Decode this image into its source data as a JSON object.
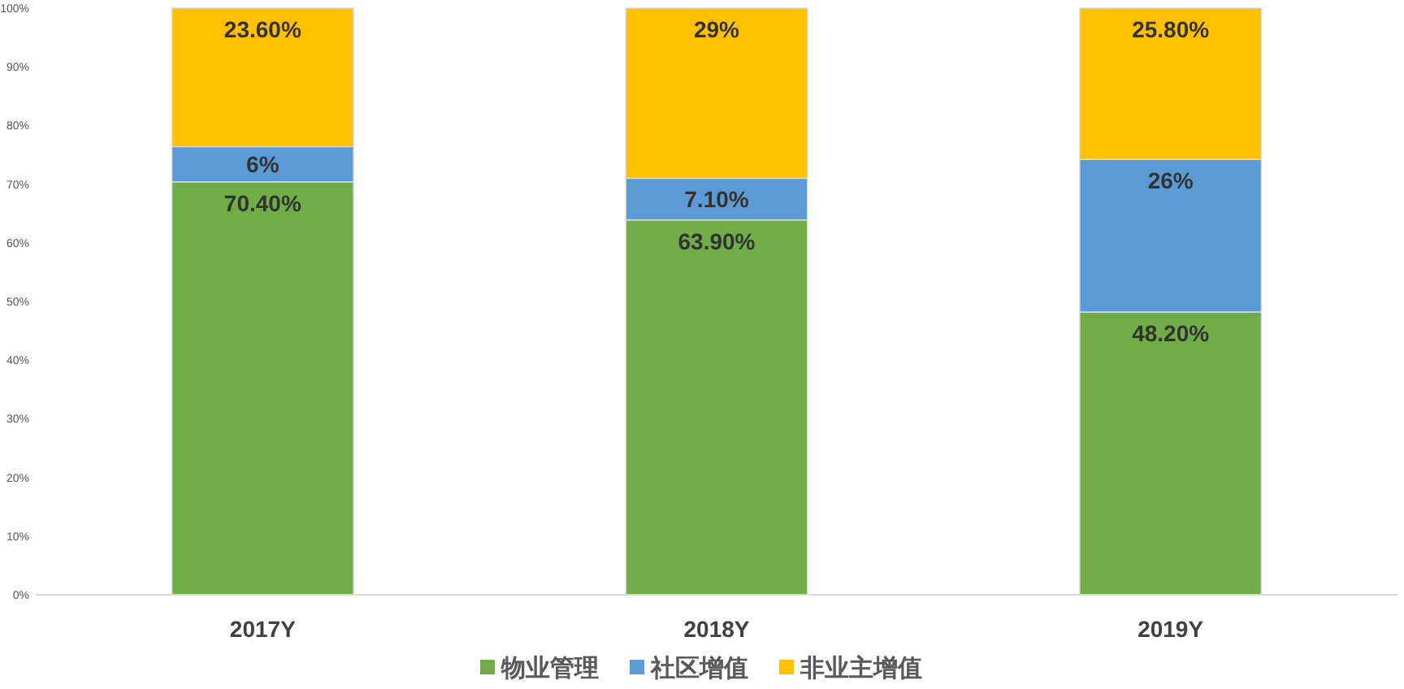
{
  "chart_data": {
    "type": "bar",
    "stacked": true,
    "categories": [
      "2017Y",
      "2018Y",
      "2019Y"
    ],
    "series": [
      {
        "name": "物业管理",
        "color": "#70ad47",
        "values": [
          70.4,
          63.9,
          48.2
        ],
        "value_labels": [
          "70.40%",
          "63.90%",
          "48.20%"
        ]
      },
      {
        "name": "社区增值",
        "color": "#5b9bd5",
        "values": [
          6,
          7.1,
          26
        ],
        "value_labels": [
          "6%",
          "7.10%",
          "26%"
        ]
      },
      {
        "name": "非业主增值",
        "color": "#ffc000",
        "values": [
          23.6,
          29,
          25.8
        ],
        "value_labels": [
          "23.60%",
          "29%",
          "25.80%"
        ]
      }
    ],
    "ylim": [
      0,
      100
    ],
    "yticks": [
      {
        "value": 0,
        "label": "0%"
      },
      {
        "value": 10,
        "label": "10%"
      },
      {
        "value": 20,
        "label": "20%"
      },
      {
        "value": 30,
        "label": "30%"
      },
      {
        "value": 40,
        "label": "40%"
      },
      {
        "value": 50,
        "label": "50%"
      },
      {
        "value": 60,
        "label": "60%"
      },
      {
        "value": 70,
        "label": "70%"
      },
      {
        "value": 80,
        "label": "80%"
      },
      {
        "value": 90,
        "label": "90%"
      },
      {
        "value": 100,
        "label": "100%"
      }
    ],
    "legend": "bottom",
    "grid": false
  }
}
